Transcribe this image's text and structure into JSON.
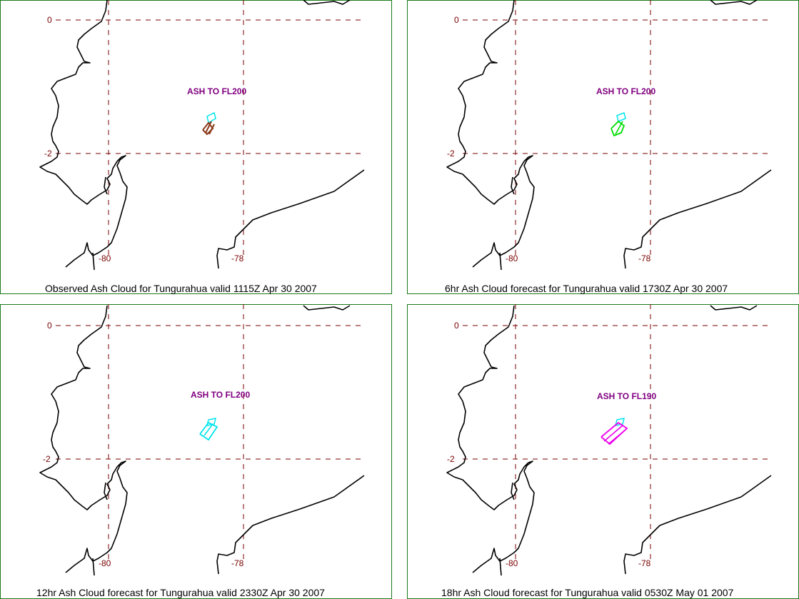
{
  "panels": [
    {
      "caption": "Observed Ash Cloud for Tungurahua valid 1115Z Apr 30 2007",
      "ash_label": "ASH TO FL200",
      "cloud_color": "#8b3a1a",
      "lat_ticks": [
        "0",
        "-2"
      ],
      "lon_ticks": [
        "-80",
        "-78"
      ]
    },
    {
      "caption": "6hr Ash Cloud forecast for Tungurahua valid 1730Z Apr 30 2007",
      "ash_label": "ASH TO FL200",
      "cloud_color": "#00dd00",
      "lat_ticks": [
        "0",
        "-2"
      ],
      "lon_ticks": [
        "-80",
        "-78"
      ]
    },
    {
      "caption": "12hr Ash Cloud forecast for Tungurahua valid 2330Z Apr 30 2007",
      "ash_label": "ASH TO FL200",
      "cloud_color": "#00e5ee",
      "lat_ticks": [
        "0",
        "-2"
      ],
      "lon_ticks": [
        "-80",
        "-78"
      ]
    },
    {
      "caption": "18hr Ash Cloud forecast for Tungurahua valid 0530Z May 01 2007",
      "ash_label": "ASH TO FL190",
      "cloud_color": "#ee00ee",
      "lat_ticks": [
        "0",
        "-2"
      ],
      "lon_ticks": [
        "-80",
        "-78"
      ]
    }
  ],
  "colors": {
    "border": "#1a7a1a",
    "gridline": "#7a0000",
    "coastline": "#000000",
    "volcano_marker": "#00e5ee"
  }
}
